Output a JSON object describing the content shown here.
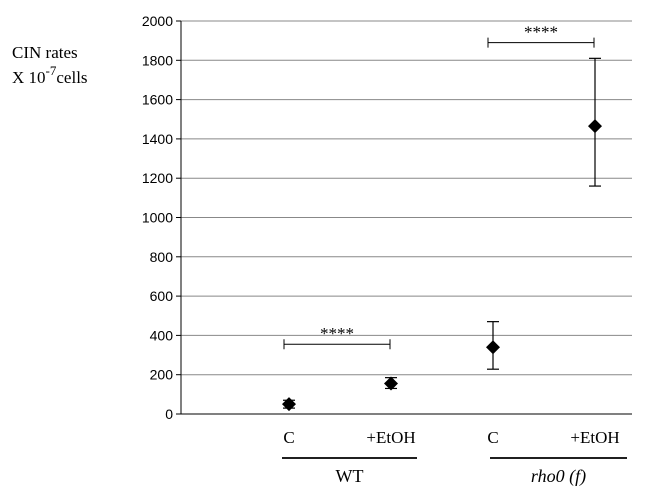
{
  "chart_data": {
    "type": "scatter",
    "ylabel_line1": "CIN rates",
    "ylabel_line2_prefix": "X 10",
    "ylabel_line2_exponent": "-7",
    "ylabel_line2_suffix": "cells",
    "ylim": [
      0,
      2000
    ],
    "yticks": [
      0,
      200,
      400,
      600,
      800,
      1000,
      1200,
      1400,
      1600,
      1800,
      2000
    ],
    "grid": true,
    "points": [
      {
        "group": "WT",
        "condition": "C",
        "value": 50,
        "err_low": 30,
        "err_high": 70
      },
      {
        "group": "WT",
        "condition": "+EtOH",
        "value": 155,
        "err_low": 130,
        "err_high": 185
      },
      {
        "group": "rho0 (f)",
        "condition": "C",
        "value": 340,
        "err_low": 228,
        "err_high": 470
      },
      {
        "group": "rho0 (f)",
        "condition": "+EtOH",
        "value": 1465,
        "err_low": 1160,
        "err_high": 1810
      }
    ],
    "category_labels": [
      "C",
      "+EtOH",
      "C",
      "+EtOH"
    ],
    "group_labels": [
      "WT",
      "rho0 (f)"
    ],
    "significance": [
      {
        "from": 0,
        "to": 1,
        "y": 355,
        "label": "****"
      },
      {
        "from": 2,
        "to": 3,
        "y": 1890,
        "label": "****"
      }
    ],
    "colors": {
      "marker": "#000000",
      "grid": "#888888",
      "axis": "#000000"
    }
  }
}
